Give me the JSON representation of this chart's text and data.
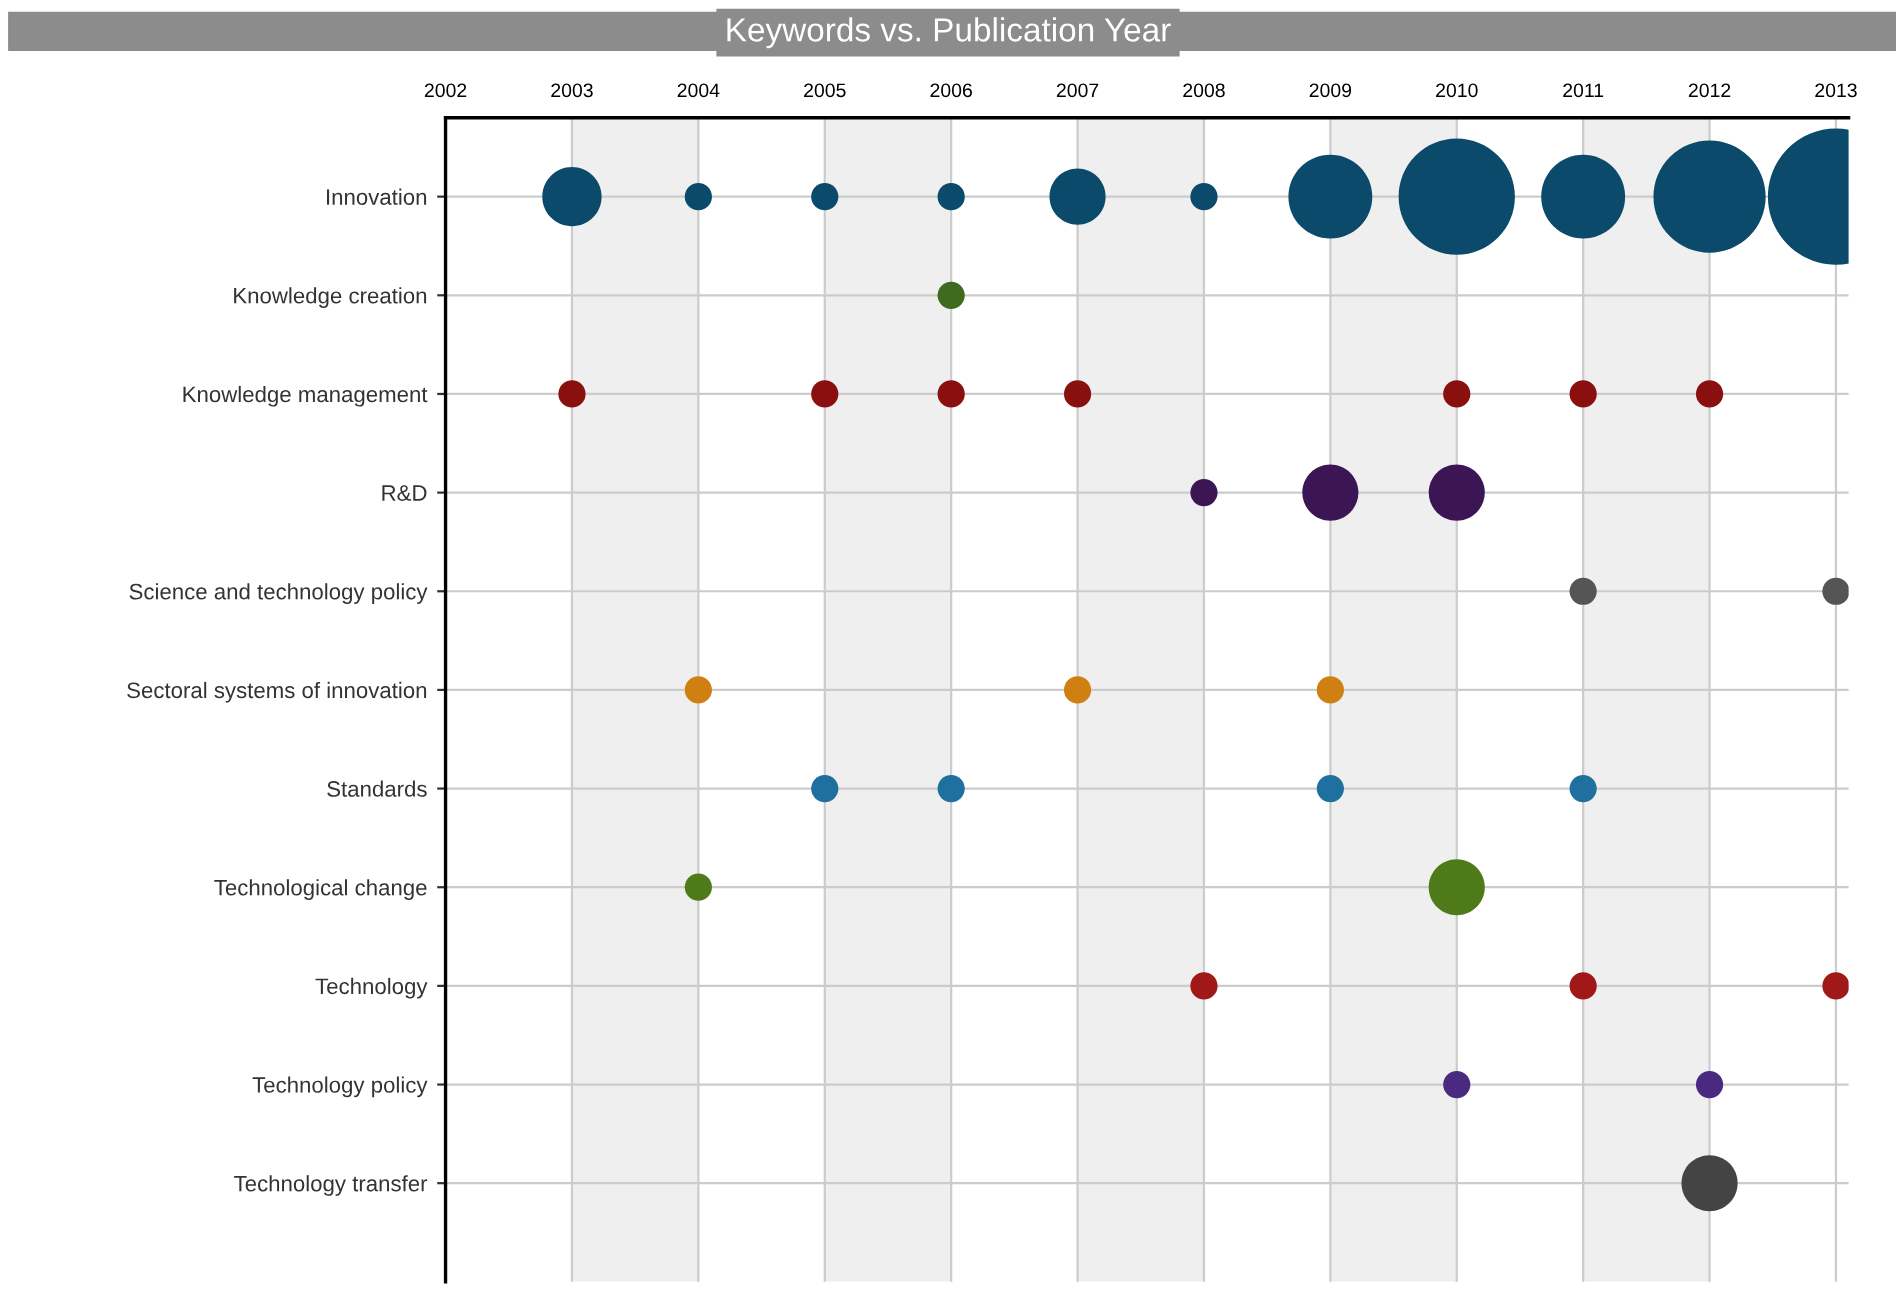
{
  "chart_data": {
    "type": "bubble",
    "title": "Keywords vs. Publication Year",
    "orientation": "horizontal",
    "categories": [
      "Innovation",
      "Knowledge creation",
      "Knowledge management",
      "R&D",
      "Science and technology policy",
      "Sectoral systems of innovation",
      "Standards",
      "Technological change",
      "Technology",
      "Technology policy",
      "Technology transfer"
    ],
    "xlim": [
      2002,
      2013.1
    ],
    "xticks": [
      2002,
      2003,
      2004,
      2005,
      2006,
      2007,
      2008,
      2009,
      2010,
      2011,
      2012,
      2013
    ],
    "grid": true,
    "legend": false,
    "bands": [
      {
        "axis": "x",
        "from": 2003,
        "to": 2004,
        "color": "#efefef"
      },
      {
        "axis": "x",
        "from": 2005,
        "to": 2006,
        "color": "#efefef"
      },
      {
        "axis": "x",
        "from": 2007,
        "to": 2008,
        "color": "#efefef"
      },
      {
        "axis": "x",
        "from": 2009,
        "to": 2010,
        "color": "#efefef"
      },
      {
        "axis": "x",
        "from": 2011,
        "to": 2012,
        "color": "#efefef"
      }
    ],
    "series": [
      {
        "values": [
          2003,
          null,
          2003,
          null,
          null,
          null,
          null,
          null,
          null,
          null,
          null
        ],
        "sizes": [
          0.19,
          null,
          0.04,
          null,
          null,
          null,
          null,
          null,
          null,
          null,
          null
        ],
        "colors": [
          "#0b4a6a",
          null,
          "#8a1010",
          null,
          null,
          null,
          null,
          null,
          null,
          null,
          null
        ]
      },
      {
        "values": [
          2004,
          null,
          null,
          null,
          null,
          2004,
          null,
          2004,
          null,
          null,
          null
        ],
        "sizes": [
          0.04,
          null,
          null,
          null,
          null,
          0.04,
          null,
          0.04,
          null,
          null,
          null
        ],
        "colors": [
          "#0b4a6a",
          null,
          null,
          null,
          null,
          "#d08010",
          null,
          "#4f7a1a",
          null,
          null,
          null
        ]
      },
      {
        "values": [
          2005,
          null,
          2005,
          null,
          null,
          null,
          2005,
          null,
          null,
          null,
          null
        ],
        "sizes": [
          0.04,
          null,
          0.04,
          null,
          null,
          null,
          0.04,
          null,
          null,
          null,
          null
        ],
        "colors": [
          "#0b4a6a",
          null,
          "#8a1010",
          null,
          null,
          null,
          "#1f6f9f",
          null,
          null,
          null,
          null
        ]
      },
      {
        "values": [
          2006,
          2006,
          2006,
          null,
          null,
          null,
          2006,
          null,
          null,
          null,
          null
        ],
        "sizes": [
          0.04,
          0.04,
          0.04,
          null,
          null,
          null,
          0.04,
          null,
          null,
          null,
          null
        ],
        "colors": [
          "#0b4a6a",
          "#3f6b1e",
          "#8a1010",
          null,
          null,
          null,
          "#1f6f9f",
          null,
          null,
          null,
          null
        ]
      },
      {
        "values": [
          2007,
          null,
          2007,
          null,
          null,
          2007,
          null,
          null,
          null,
          null,
          null
        ],
        "sizes": [
          0.17,
          null,
          0.04,
          null,
          null,
          0.04,
          null,
          null,
          null,
          null,
          null
        ],
        "colors": [
          "#0b4a6a",
          null,
          "#8a1010",
          null,
          null,
          "#d08010",
          null,
          null,
          null,
          null,
          null
        ]
      },
      {
        "values": [
          2008,
          null,
          null,
          2008,
          null,
          null,
          null,
          null,
          2008,
          null,
          null
        ],
        "sizes": [
          0.04,
          null,
          null,
          0.04,
          null,
          null,
          null,
          null,
          0.04,
          null,
          null
        ],
        "colors": [
          "#0b4a6a",
          null,
          null,
          "#3c1555",
          null,
          null,
          null,
          null,
          "#a01818",
          null,
          null
        ]
      },
      {
        "values": [
          2009,
          null,
          null,
          2009,
          null,
          2009,
          2009,
          null,
          null,
          null,
          null
        ],
        "sizes": [
          0.38,
          null,
          null,
          0.17,
          null,
          0.04,
          0.04,
          null,
          null,
          null,
          null
        ],
        "colors": [
          "#0b4a6a",
          null,
          null,
          "#3c1555",
          null,
          "#d08010",
          "#1f6f9f",
          null,
          null,
          null,
          null
        ]
      },
      {
        "values": [
          2010,
          null,
          2010,
          2010,
          null,
          null,
          null,
          2010,
          null,
          2010,
          null
        ],
        "sizes": [
          0.73,
          null,
          0.04,
          0.17,
          null,
          null,
          null,
          0.17,
          null,
          0.04,
          null
        ],
        "colors": [
          "#0b4a6a",
          null,
          "#8a1010",
          "#3c1555",
          null,
          null,
          null,
          "#4f7a1a",
          null,
          "#4a2a80",
          null
        ]
      },
      {
        "values": [
          2011,
          null,
          2011,
          null,
          2011,
          null,
          2011,
          null,
          2011,
          null,
          null
        ],
        "sizes": [
          0.38,
          null,
          0.04,
          null,
          0.04,
          null,
          0.04,
          null,
          0.04,
          null,
          null
        ],
        "colors": [
          "#0b4a6a",
          null,
          "#8a1010",
          null,
          "#555555",
          null,
          "#1f6f9f",
          null,
          "#a01818",
          null,
          null
        ]
      },
      {
        "values": [
          2012,
          null,
          2012,
          null,
          null,
          null,
          null,
          null,
          null,
          2012,
          2012
        ],
        "sizes": [
          0.68,
          null,
          0.04,
          null,
          null,
          null,
          null,
          null,
          null,
          0.04,
          0.17
        ],
        "colors": [
          "#0b4a6a",
          null,
          "#8a1010",
          null,
          null,
          null,
          null,
          null,
          null,
          "#4a2a80",
          "#444444"
        ]
      },
      {
        "values": [
          2013,
          null,
          null,
          null,
          2013,
          null,
          null,
          null,
          2013,
          null,
          null
        ],
        "sizes": [
          1,
          null,
          null,
          null,
          0.04,
          null,
          null,
          null,
          0.04,
          null,
          null
        ],
        "colors": [
          "#0b4a6a",
          null,
          null,
          null,
          "#555555",
          null,
          null,
          null,
          "#a01818",
          null,
          null
        ]
      }
    ]
  }
}
